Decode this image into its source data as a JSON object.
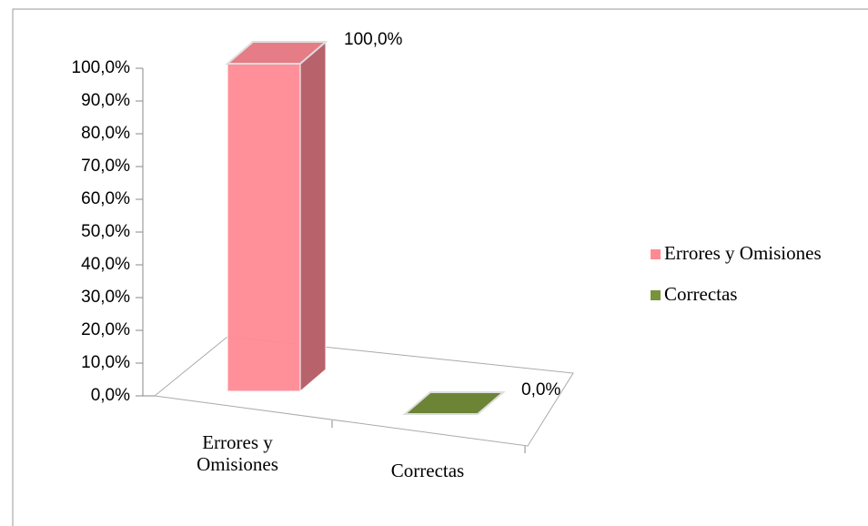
{
  "chart_data": {
    "type": "bar3d",
    "categories": [
      "Errores y Omisiones",
      "Correctas"
    ],
    "values": [
      100,
      0
    ],
    "value_labels": [
      "100,0%",
      "0,0%"
    ],
    "colors": [
      "#ff8a94",
      "#77933c"
    ],
    "ylim": [
      0,
      100
    ],
    "yticks": [
      {
        "value": 0,
        "label": "0,0%"
      },
      {
        "value": 10,
        "label": "10,0%"
      },
      {
        "value": 20,
        "label": "20,0%"
      },
      {
        "value": 30,
        "label": "30,0%"
      },
      {
        "value": 40,
        "label": "40,0%"
      },
      {
        "value": 50,
        "label": "50,0%"
      },
      {
        "value": 60,
        "label": "60,0%"
      },
      {
        "value": 70,
        "label": "70,0%"
      },
      {
        "value": 80,
        "label": "80,0%"
      },
      {
        "value": 90,
        "label": "90,0%"
      },
      {
        "value": 100,
        "label": "100,0%"
      }
    ],
    "legend": "right"
  }
}
